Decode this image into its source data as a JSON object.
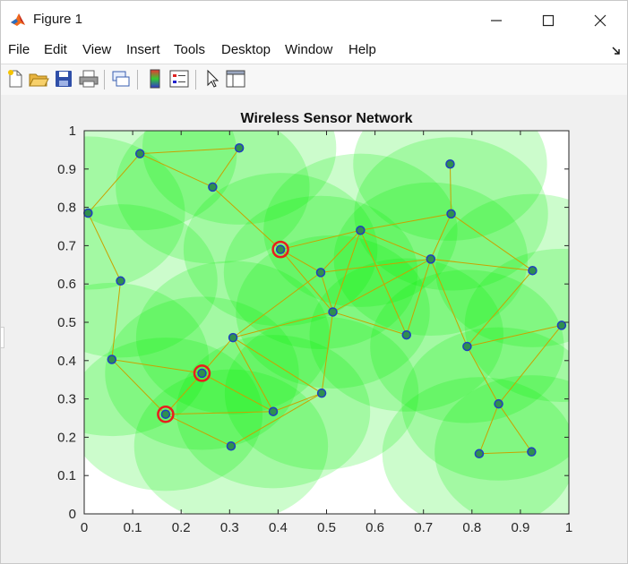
{
  "window": {
    "title": "Figure 1",
    "controls": [
      "minimize",
      "maximize",
      "close"
    ]
  },
  "menu": {
    "items": [
      "File",
      "Edit",
      "View",
      "Insert",
      "Tools",
      "Desktop",
      "Window",
      "Help"
    ]
  },
  "toolbar": {
    "buttons": [
      "new-figure-icon",
      "open-file-icon",
      "save-icon",
      "print-icon",
      "link-icon",
      "colorbar-icon",
      "legend-icon",
      "pointer-icon",
      "property-inspector-icon"
    ]
  },
  "colors": {
    "coverage": "#00ee00",
    "node_fill": "#2f8f4f",
    "node_edge": "#1f3fbf",
    "link": "#c9a200",
    "highlight": "#e81e1e"
  },
  "chart_data": {
    "type": "scatter",
    "title": "Wireless Sensor Network",
    "xlabel": "",
    "ylabel": "",
    "xlim": [
      0,
      1
    ],
    "ylim": [
      0,
      1
    ],
    "xticks": [
      "0",
      "0.1",
      "0.2",
      "0.3",
      "0.4",
      "0.5",
      "0.6",
      "0.7",
      "0.8",
      "0.9",
      "1"
    ],
    "yticks": [
      "0",
      "0.1",
      "0.2",
      "0.3",
      "0.4",
      "0.5",
      "0.6",
      "0.7",
      "0.8",
      "0.9",
      "1"
    ],
    "grid": false,
    "legend": "none",
    "coverage_radius": 0.2,
    "nodes": [
      {
        "x": 0.115,
        "y": 0.94
      },
      {
        "x": 0.32,
        "y": 0.955
      },
      {
        "x": 0.265,
        "y": 0.853
      },
      {
        "x": 0.008,
        "y": 0.785
      },
      {
        "x": 0.755,
        "y": 0.913
      },
      {
        "x": 0.757,
        "y": 0.783
      },
      {
        "x": 0.405,
        "y": 0.69
      },
      {
        "x": 0.57,
        "y": 0.74
      },
      {
        "x": 0.488,
        "y": 0.63
      },
      {
        "x": 0.715,
        "y": 0.665
      },
      {
        "x": 0.925,
        "y": 0.635
      },
      {
        "x": 0.075,
        "y": 0.608
      },
      {
        "x": 0.513,
        "y": 0.527
      },
      {
        "x": 0.985,
        "y": 0.492
      },
      {
        "x": 0.665,
        "y": 0.467
      },
      {
        "x": 0.307,
        "y": 0.46
      },
      {
        "x": 0.79,
        "y": 0.437
      },
      {
        "x": 0.057,
        "y": 0.403
      },
      {
        "x": 0.243,
        "y": 0.367
      },
      {
        "x": 0.49,
        "y": 0.315
      },
      {
        "x": 0.855,
        "y": 0.287
      },
      {
        "x": 0.39,
        "y": 0.267
      },
      {
        "x": 0.168,
        "y": 0.26
      },
      {
        "x": 0.303,
        "y": 0.177
      },
      {
        "x": 0.815,
        "y": 0.157
      },
      {
        "x": 0.923,
        "y": 0.162
      }
    ],
    "links": [
      [
        0,
        1
      ],
      [
        0,
        2
      ],
      [
        1,
        2
      ],
      [
        0,
        3
      ],
      [
        3,
        11
      ],
      [
        11,
        17
      ],
      [
        2,
        6
      ],
      [
        6,
        7
      ],
      [
        6,
        8
      ],
      [
        6,
        12
      ],
      [
        7,
        8
      ],
      [
        7,
        5
      ],
      [
        7,
        9
      ],
      [
        7,
        12
      ],
      [
        7,
        14
      ],
      [
        8,
        9
      ],
      [
        8,
        12
      ],
      [
        8,
        15
      ],
      [
        4,
        5
      ],
      [
        5,
        9
      ],
      [
        5,
        10
      ],
      [
        9,
        10
      ],
      [
        9,
        14
      ],
      [
        9,
        12
      ],
      [
        9,
        16
      ],
      [
        10,
        16
      ],
      [
        13,
        16
      ],
      [
        13,
        20
      ],
      [
        12,
        15
      ],
      [
        12,
        19
      ],
      [
        12,
        14
      ],
      [
        15,
        18
      ],
      [
        15,
        21
      ],
      [
        15,
        19
      ],
      [
        17,
        18
      ],
      [
        17,
        22
      ],
      [
        18,
        21
      ],
      [
        18,
        22
      ],
      [
        22,
        21
      ],
      [
        22,
        23
      ],
      [
        21,
        19
      ],
      [
        23,
        19
      ],
      [
        16,
        20
      ],
      [
        20,
        24
      ],
      [
        20,
        25
      ],
      [
        24,
        25
      ]
    ],
    "highlighted_nodes": [
      6,
      18,
      22
    ]
  }
}
